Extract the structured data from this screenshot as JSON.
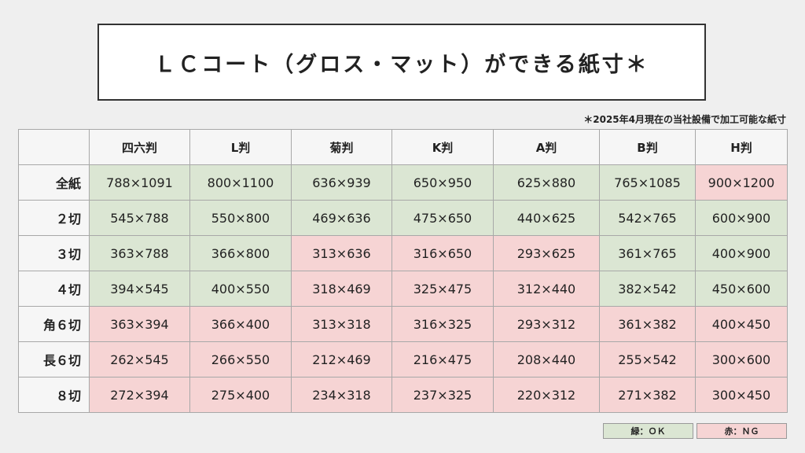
{
  "title": "ＬＣコート（グロス・マット）ができる紙寸＊",
  "footnote": "＊2025年4月現在の当社設備で加工可能な紙寸",
  "columns": [
    "四六判",
    "L判",
    "菊判",
    "K判",
    "A判",
    "B判",
    "H判"
  ],
  "rows": [
    {
      "label": "全紙",
      "cells": [
        {
          "v": "788×1091",
          "s": "ok"
        },
        {
          "v": "800×1100",
          "s": "ok"
        },
        {
          "v": "636×939",
          "s": "ok"
        },
        {
          "v": "650×950",
          "s": "ok"
        },
        {
          "v": "625×880",
          "s": "ok"
        },
        {
          "v": "765×1085",
          "s": "ok"
        },
        {
          "v": "900×1200",
          "s": "ng"
        }
      ]
    },
    {
      "label": "２切",
      "cells": [
        {
          "v": "545×788",
          "s": "ok"
        },
        {
          "v": "550×800",
          "s": "ok"
        },
        {
          "v": "469×636",
          "s": "ok"
        },
        {
          "v": "475×650",
          "s": "ok"
        },
        {
          "v": "440×625",
          "s": "ok"
        },
        {
          "v": "542×765",
          "s": "ok"
        },
        {
          "v": "600×900",
          "s": "ok"
        }
      ]
    },
    {
      "label": "３切",
      "cells": [
        {
          "v": "363×788",
          "s": "ok"
        },
        {
          "v": "366×800",
          "s": "ok"
        },
        {
          "v": "313×636",
          "s": "ng"
        },
        {
          "v": "316×650",
          "s": "ng"
        },
        {
          "v": "293×625",
          "s": "ng"
        },
        {
          "v": "361×765",
          "s": "ok"
        },
        {
          "v": "400×900",
          "s": "ok"
        }
      ]
    },
    {
      "label": "４切",
      "cells": [
        {
          "v": "394×545",
          "s": "ok"
        },
        {
          "v": "400×550",
          "s": "ok"
        },
        {
          "v": "318×469",
          "s": "ng"
        },
        {
          "v": "325×475",
          "s": "ng"
        },
        {
          "v": "312×440",
          "s": "ng"
        },
        {
          "v": "382×542",
          "s": "ok"
        },
        {
          "v": "450×600",
          "s": "ok"
        }
      ]
    },
    {
      "label": "角６切",
      "cells": [
        {
          "v": "363×394",
          "s": "ng"
        },
        {
          "v": "366×400",
          "s": "ng"
        },
        {
          "v": "313×318",
          "s": "ng"
        },
        {
          "v": "316×325",
          "s": "ng"
        },
        {
          "v": "293×312",
          "s": "ng"
        },
        {
          "v": "361×382",
          "s": "ng"
        },
        {
          "v": "400×450",
          "s": "ng"
        }
      ]
    },
    {
      "label": "長６切",
      "cells": [
        {
          "v": "262×545",
          "s": "ng"
        },
        {
          "v": "266×550",
          "s": "ng"
        },
        {
          "v": "212×469",
          "s": "ng"
        },
        {
          "v": "216×475",
          "s": "ng"
        },
        {
          "v": "208×440",
          "s": "ng"
        },
        {
          "v": "255×542",
          "s": "ng"
        },
        {
          "v": "300×600",
          "s": "ng"
        }
      ]
    },
    {
      "label": "８切",
      "cells": [
        {
          "v": "272×394",
          "s": "ng"
        },
        {
          "v": "275×400",
          "s": "ng"
        },
        {
          "v": "234×318",
          "s": "ng"
        },
        {
          "v": "237×325",
          "s": "ng"
        },
        {
          "v": "220×312",
          "s": "ng"
        },
        {
          "v": "271×382",
          "s": "ng"
        },
        {
          "v": "300×450",
          "s": "ng"
        }
      ]
    }
  ],
  "legend": {
    "ok": "緑：ＯＫ",
    "ng": "赤：ＮＧ"
  },
  "colors": {
    "ok": "#dbe6d3",
    "ng": "#f6d4d4"
  }
}
